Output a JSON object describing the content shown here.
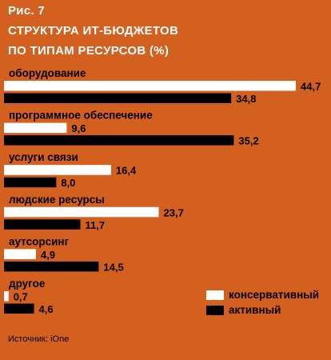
{
  "figure": {
    "label": "Рис. 7",
    "title_line1": "СТРУКТУРА ИТ-БЮДЖЕТОВ",
    "title_line2": "ПО ТИПАМ РЕСУРСОВ (%)"
  },
  "colors": {
    "background": "#d3601e",
    "conservative": "#ffffff",
    "active": "#000000"
  },
  "legend": {
    "conservative": "консервативный",
    "active": "активный"
  },
  "source": "Источник: iOne",
  "chart_data": {
    "type": "bar",
    "orientation": "horizontal",
    "title": "СТРУКТУРА ИТ-БЮДЖЕТОВ ПО ТИПАМ РЕСУРСОВ (%)",
    "categories": [
      "оборудование",
      "программное обеспечение",
      "услуги связи",
      "людские ресурсы",
      "аутсорсинг",
      "другое"
    ],
    "series": [
      {
        "name": "консервативный",
        "values": [
          44.7,
          9.6,
          16.4,
          23.7,
          4.9,
          0.7
        ],
        "labels": [
          "44,7",
          "9,6",
          "16,4",
          "23,7",
          "4,9",
          "0,7"
        ]
      },
      {
        "name": "активный",
        "values": [
          34.8,
          35.2,
          8.0,
          11.7,
          14.5,
          4.6
        ],
        "labels": [
          "34,8",
          "35,2",
          "8,0",
          "11,7",
          "14,5",
          "4,6"
        ]
      }
    ],
    "xlim": [
      0,
      44.7
    ],
    "grid": false,
    "legend_position": "bottom-right"
  }
}
